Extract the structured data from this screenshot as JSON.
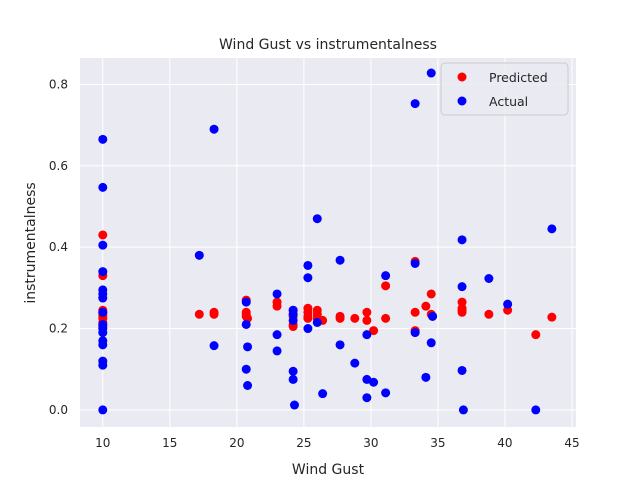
{
  "chart_data": {
    "type": "scatter",
    "title": "Wind Gust vs instrumentalness",
    "xlabel": "Wind Gust",
    "ylabel": "instrumentalness",
    "xlim": [
      8.3,
      45.3
    ],
    "ylim": [
      -0.042,
      0.865
    ],
    "xticks": [
      10,
      15,
      20,
      25,
      30,
      35,
      40,
      45
    ],
    "yticks": [
      0.0,
      0.2,
      0.4,
      0.6,
      0.8
    ],
    "grid": true,
    "legend_position": "top-right",
    "series": [
      {
        "name": "Predicted",
        "color": "#ff0000",
        "points": [
          [
            10,
            0.43
          ],
          [
            10,
            0.33
          ],
          [
            10,
            0.245
          ],
          [
            10,
            0.24
          ],
          [
            10,
            0.235
          ],
          [
            10,
            0.23
          ],
          [
            10,
            0.225
          ],
          [
            10,
            0.215
          ],
          [
            10,
            0.21
          ],
          [
            10,
            0.205
          ],
          [
            17.2,
            0.235
          ],
          [
            18.3,
            0.24
          ],
          [
            18.3,
            0.235
          ],
          [
            20.7,
            0.27
          ],
          [
            20.7,
            0.24
          ],
          [
            20.7,
            0.235
          ],
          [
            20.7,
            0.23
          ],
          [
            20.8,
            0.225
          ],
          [
            23,
            0.265
          ],
          [
            23,
            0.255
          ],
          [
            24.2,
            0.245
          ],
          [
            24.2,
            0.235
          ],
          [
            24.2,
            0.23
          ],
          [
            24.2,
            0.21
          ],
          [
            24.2,
            0.205
          ],
          [
            25.3,
            0.25
          ],
          [
            25.3,
            0.24
          ],
          [
            25.3,
            0.23
          ],
          [
            25.3,
            0.225
          ],
          [
            26,
            0.245
          ],
          [
            26,
            0.235
          ],
          [
            26,
            0.225
          ],
          [
            26.4,
            0.22
          ],
          [
            27.7,
            0.23
          ],
          [
            27.7,
            0.225
          ],
          [
            28.8,
            0.225
          ],
          [
            29.7,
            0.24
          ],
          [
            29.7,
            0.22
          ],
          [
            30.2,
            0.195
          ],
          [
            31.1,
            0.305
          ],
          [
            31.1,
            0.225
          ],
          [
            33.3,
            0.365
          ],
          [
            33.3,
            0.24
          ],
          [
            33.3,
            0.195
          ],
          [
            34.1,
            0.255
          ],
          [
            34.5,
            0.285
          ],
          [
            34.5,
            0.235
          ],
          [
            34.6,
            0.23
          ],
          [
            36.8,
            0.265
          ],
          [
            36.8,
            0.25
          ],
          [
            36.8,
            0.245
          ],
          [
            36.8,
            0.24
          ],
          [
            38.8,
            0.235
          ],
          [
            40.2,
            0.245
          ],
          [
            42.3,
            0.185
          ],
          [
            43.5,
            0.228
          ]
        ]
      },
      {
        "name": "Actual",
        "color": "#0000ff",
        "points": [
          [
            10,
            0.665
          ],
          [
            10,
            0.547
          ],
          [
            10,
            0.405
          ],
          [
            10,
            0.34
          ],
          [
            10,
            0.295
          ],
          [
            10,
            0.285
          ],
          [
            10,
            0.275
          ],
          [
            10,
            0.24
          ],
          [
            10,
            0.21
          ],
          [
            10,
            0.2
          ],
          [
            10,
            0.19
          ],
          [
            10,
            0.17
          ],
          [
            10,
            0.16
          ],
          [
            10,
            0.12
          ],
          [
            10,
            0.11
          ],
          [
            10,
            0.0
          ],
          [
            17.2,
            0.38
          ],
          [
            18.3,
            0.69
          ],
          [
            18.3,
            0.158
          ],
          [
            20.7,
            0.265
          ],
          [
            20.7,
            0.21
          ],
          [
            20.8,
            0.155
          ],
          [
            20.7,
            0.1
          ],
          [
            20.8,
            0.06
          ],
          [
            23,
            0.285
          ],
          [
            23,
            0.185
          ],
          [
            23,
            0.145
          ],
          [
            24.2,
            0.245
          ],
          [
            24.2,
            0.235
          ],
          [
            24.2,
            0.22
          ],
          [
            24.2,
            0.095
          ],
          [
            24.2,
            0.075
          ],
          [
            24.3,
            0.012
          ],
          [
            25.3,
            0.355
          ],
          [
            25.3,
            0.325
          ],
          [
            25.3,
            0.2
          ],
          [
            26,
            0.47
          ],
          [
            26,
            0.215
          ],
          [
            26.4,
            0.04
          ],
          [
            27.7,
            0.368
          ],
          [
            27.7,
            0.16
          ],
          [
            28.8,
            0.115
          ],
          [
            29.7,
            0.185
          ],
          [
            29.7,
            0.075
          ],
          [
            29.7,
            0.03
          ],
          [
            30.2,
            0.068
          ],
          [
            31.1,
            0.33
          ],
          [
            31.1,
            0.042
          ],
          [
            33.3,
            0.753
          ],
          [
            33.3,
            0.36
          ],
          [
            33.3,
            0.19
          ],
          [
            34.1,
            0.08
          ],
          [
            34.5,
            0.828
          ],
          [
            34.5,
            0.165
          ],
          [
            34.6,
            0.23
          ],
          [
            36.8,
            0.418
          ],
          [
            36.8,
            0.303
          ],
          [
            36.8,
            0.097
          ],
          [
            36.9,
            0.0
          ],
          [
            38.8,
            0.323
          ],
          [
            40.2,
            0.26
          ],
          [
            42.3,
            0.0
          ],
          [
            43.5,
            0.445
          ]
        ]
      }
    ]
  }
}
